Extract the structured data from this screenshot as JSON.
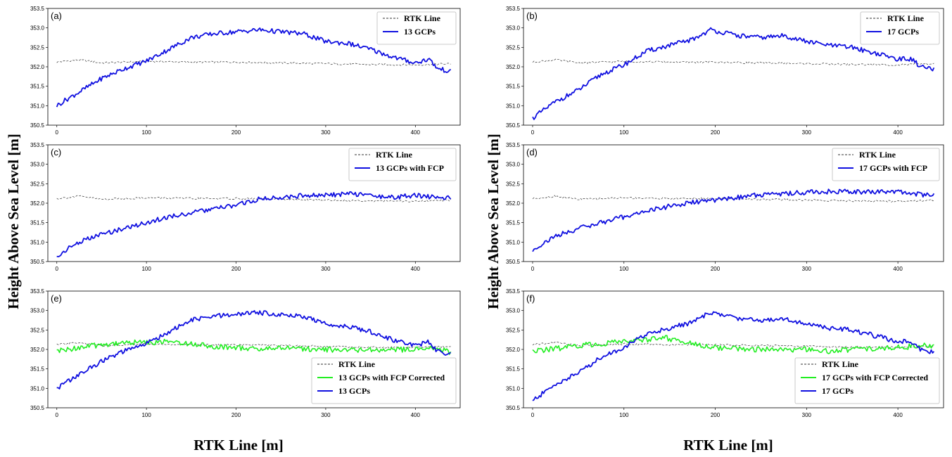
{
  "figure": {
    "ylabel": "Height Above Sea  Level [m]",
    "xlabel": "RTK Line [m]"
  },
  "colors": {
    "rtk": "#333333",
    "blue": "#1010e0",
    "green": "#22ee22"
  },
  "chart_data": [
    {
      "type": "line",
      "panel_label": "(a)",
      "xlim": [
        -10,
        450
      ],
      "ylim": [
        350.5,
        353.5
      ],
      "xticks": [
        0,
        100,
        200,
        300,
        400
      ],
      "yticks": [
        350.5,
        351.0,
        351.5,
        352.0,
        352.5,
        353.0,
        353.5
      ],
      "legend_position": "top-right",
      "series": [
        {
          "name": "RTK Line",
          "style": "dash",
          "color": "#333333",
          "x": [
            0,
            25,
            50,
            75,
            100,
            150,
            200,
            250,
            300,
            350,
            400,
            440
          ],
          "y": [
            352.12,
            352.18,
            352.1,
            352.12,
            352.14,
            352.12,
            352.12,
            352.1,
            352.08,
            352.06,
            352.05,
            352.08
          ]
        },
        {
          "name": "13 GCPs",
          "style": "solid",
          "color": "#1010e0",
          "x": [
            0,
            10,
            25,
            50,
            75,
            100,
            125,
            150,
            175,
            200,
            225,
            250,
            275,
            300,
            325,
            350,
            375,
            400,
            415,
            425,
            440
          ],
          "y": [
            351.0,
            351.15,
            351.35,
            351.7,
            351.95,
            352.15,
            352.45,
            352.75,
            352.85,
            352.9,
            352.95,
            352.9,
            352.85,
            352.65,
            352.6,
            352.45,
            352.25,
            352.1,
            352.2,
            351.95,
            351.88
          ]
        }
      ]
    },
    {
      "type": "line",
      "panel_label": "(b)",
      "xlim": [
        -10,
        450
      ],
      "ylim": [
        350.5,
        353.5
      ],
      "xticks": [
        0,
        100,
        200,
        300,
        400
      ],
      "yticks": [
        350.5,
        351.0,
        351.5,
        352.0,
        352.5,
        353.0,
        353.5
      ],
      "legend_position": "top-right",
      "series": [
        {
          "name": "RTK Line",
          "style": "dash",
          "color": "#333333",
          "x": [
            0,
            25,
            50,
            75,
            100,
            150,
            200,
            250,
            300,
            350,
            400,
            440
          ],
          "y": [
            352.12,
            352.18,
            352.1,
            352.12,
            352.14,
            352.12,
            352.12,
            352.1,
            352.08,
            352.06,
            352.05,
            352.08
          ]
        },
        {
          "name": "17 GCPs",
          "style": "solid",
          "color": "#1010e0",
          "x": [
            0,
            10,
            25,
            50,
            75,
            100,
            125,
            150,
            175,
            195,
            225,
            250,
            275,
            300,
            325,
            350,
            375,
            400,
            415,
            425,
            440
          ],
          "y": [
            350.68,
            350.85,
            351.1,
            351.4,
            351.8,
            352.05,
            352.4,
            352.55,
            352.7,
            352.95,
            352.8,
            352.75,
            352.8,
            352.65,
            352.55,
            352.5,
            352.35,
            352.2,
            352.2,
            352.0,
            351.92
          ]
        }
      ]
    },
    {
      "type": "line",
      "panel_label": "(c)",
      "xlim": [
        -10,
        450
      ],
      "ylim": [
        350.5,
        353.5
      ],
      "xticks": [
        0,
        100,
        200,
        300,
        400
      ],
      "yticks": [
        350.5,
        351.0,
        351.5,
        352.0,
        352.5,
        353.0,
        353.5
      ],
      "legend_position": "top-right",
      "series": [
        {
          "name": "RTK Line",
          "style": "dash",
          "color": "#333333",
          "x": [
            0,
            25,
            50,
            75,
            100,
            150,
            200,
            250,
            300,
            350,
            400,
            440
          ],
          "y": [
            352.12,
            352.18,
            352.1,
            352.12,
            352.14,
            352.12,
            352.12,
            352.1,
            352.08,
            352.06,
            352.05,
            352.08
          ]
        },
        {
          "name": "13 GCPs with FCP",
          "style": "solid",
          "color": "#1010e0",
          "x": [
            0,
            10,
            25,
            50,
            75,
            100,
            125,
            150,
            175,
            200,
            225,
            250,
            275,
            300,
            325,
            350,
            375,
            400,
            425,
            440
          ],
          "y": [
            350.6,
            350.8,
            351.0,
            351.2,
            351.35,
            351.5,
            351.65,
            351.75,
            351.85,
            351.95,
            352.1,
            352.15,
            352.2,
            352.2,
            352.25,
            352.2,
            352.15,
            352.2,
            352.15,
            352.15
          ]
        }
      ]
    },
    {
      "type": "line",
      "panel_label": "(d)",
      "xlim": [
        -10,
        450
      ],
      "ylim": [
        350.5,
        353.5
      ],
      "xticks": [
        0,
        100,
        200,
        300,
        400
      ],
      "yticks": [
        350.5,
        351.0,
        351.5,
        352.0,
        352.5,
        353.0,
        353.5
      ],
      "legend_position": "top-right",
      "series": [
        {
          "name": "RTK Line",
          "style": "dash",
          "color": "#333333",
          "x": [
            0,
            25,
            50,
            75,
            100,
            150,
            200,
            250,
            300,
            350,
            400,
            440
          ],
          "y": [
            352.12,
            352.18,
            352.1,
            352.12,
            352.14,
            352.12,
            352.12,
            352.1,
            352.08,
            352.06,
            352.05,
            352.08
          ]
        },
        {
          "name": "17 GCPs with FCP",
          "style": "solid",
          "color": "#1010e0",
          "x": [
            0,
            10,
            25,
            50,
            75,
            100,
            125,
            150,
            175,
            200,
            225,
            250,
            275,
            300,
            325,
            350,
            375,
            400,
            425,
            440
          ],
          "y": [
            350.78,
            350.95,
            351.15,
            351.35,
            351.5,
            351.65,
            351.8,
            351.92,
            352.02,
            352.08,
            352.15,
            352.22,
            352.25,
            352.28,
            352.3,
            352.3,
            352.28,
            352.3,
            352.22,
            352.2
          ]
        }
      ]
    },
    {
      "type": "line",
      "panel_label": "(e)",
      "xlim": [
        -10,
        450
      ],
      "ylim": [
        350.5,
        353.5
      ],
      "xticks": [
        0,
        100,
        200,
        300,
        400
      ],
      "yticks": [
        350.5,
        351.0,
        351.5,
        352.0,
        352.5,
        353.0,
        353.5
      ],
      "legend_position": "bottom-right",
      "series": [
        {
          "name": "RTK Line",
          "style": "dash",
          "color": "#333333",
          "x": [
            0,
            25,
            50,
            75,
            100,
            150,
            200,
            250,
            300,
            350,
            400,
            440
          ],
          "y": [
            352.12,
            352.18,
            352.1,
            352.12,
            352.14,
            352.12,
            352.12,
            352.1,
            352.08,
            352.06,
            352.05,
            352.08
          ]
        },
        {
          "name": "13 GCPs with FCP Corrected",
          "style": "solid",
          "color": "#22ee22",
          "x": [
            0,
            25,
            50,
            75,
            100,
            125,
            150,
            175,
            200,
            225,
            250,
            275,
            300,
            325,
            350,
            375,
            400,
            425,
            440
          ],
          "y": [
            351.95,
            352.05,
            352.12,
            352.18,
            352.18,
            352.2,
            352.15,
            352.08,
            352.05,
            352.0,
            352.05,
            352.02,
            352.0,
            351.98,
            352.0,
            351.98,
            352.02,
            352.05,
            351.92
          ]
        },
        {
          "name": "13 GCPs",
          "style": "solid",
          "color": "#1010e0",
          "x": [
            0,
            10,
            25,
            50,
            75,
            100,
            125,
            150,
            175,
            200,
            225,
            250,
            275,
            300,
            325,
            350,
            375,
            400,
            415,
            425,
            440
          ],
          "y": [
            351.0,
            351.15,
            351.35,
            351.7,
            351.95,
            352.15,
            352.45,
            352.75,
            352.85,
            352.9,
            352.95,
            352.9,
            352.85,
            352.65,
            352.6,
            352.45,
            352.25,
            352.1,
            352.2,
            351.95,
            351.88
          ]
        }
      ]
    },
    {
      "type": "line",
      "panel_label": "(f)",
      "xlim": [
        -10,
        450
      ],
      "ylim": [
        350.5,
        353.5
      ],
      "xticks": [
        0,
        100,
        200,
        300,
        400
      ],
      "yticks": [
        350.5,
        351.0,
        351.5,
        352.0,
        352.5,
        353.0,
        353.5
      ],
      "legend_position": "bottom-right",
      "series": [
        {
          "name": "RTK Line",
          "style": "dash",
          "color": "#333333",
          "x": [
            0,
            25,
            50,
            75,
            100,
            150,
            200,
            250,
            300,
            350,
            400,
            440
          ],
          "y": [
            352.12,
            352.18,
            352.1,
            352.12,
            352.14,
            352.12,
            352.12,
            352.1,
            352.08,
            352.06,
            352.05,
            352.08
          ]
        },
        {
          "name": "17 GCPs with FCP Corrected",
          "style": "solid",
          "color": "#22ee22",
          "x": [
            0,
            25,
            50,
            75,
            100,
            125,
            145,
            175,
            200,
            225,
            250,
            275,
            300,
            325,
            350,
            375,
            400,
            425,
            440
          ],
          "y": [
            351.95,
            352.02,
            352.1,
            352.15,
            352.2,
            352.25,
            352.3,
            352.15,
            352.05,
            352.02,
            352.0,
            351.98,
            352.0,
            351.95,
            352.0,
            352.02,
            352.05,
            352.1,
            352.08
          ]
        },
        {
          "name": "17 GCPs",
          "style": "solid",
          "color": "#1010e0",
          "x": [
            0,
            10,
            25,
            50,
            75,
            100,
            125,
            150,
            175,
            195,
            225,
            250,
            275,
            300,
            325,
            350,
            375,
            400,
            415,
            425,
            440
          ],
          "y": [
            350.68,
            350.85,
            351.1,
            351.4,
            351.8,
            352.05,
            352.4,
            352.55,
            352.7,
            352.95,
            352.8,
            352.75,
            352.8,
            352.65,
            352.55,
            352.5,
            352.35,
            352.2,
            352.2,
            352.0,
            351.92
          ]
        }
      ]
    }
  ]
}
